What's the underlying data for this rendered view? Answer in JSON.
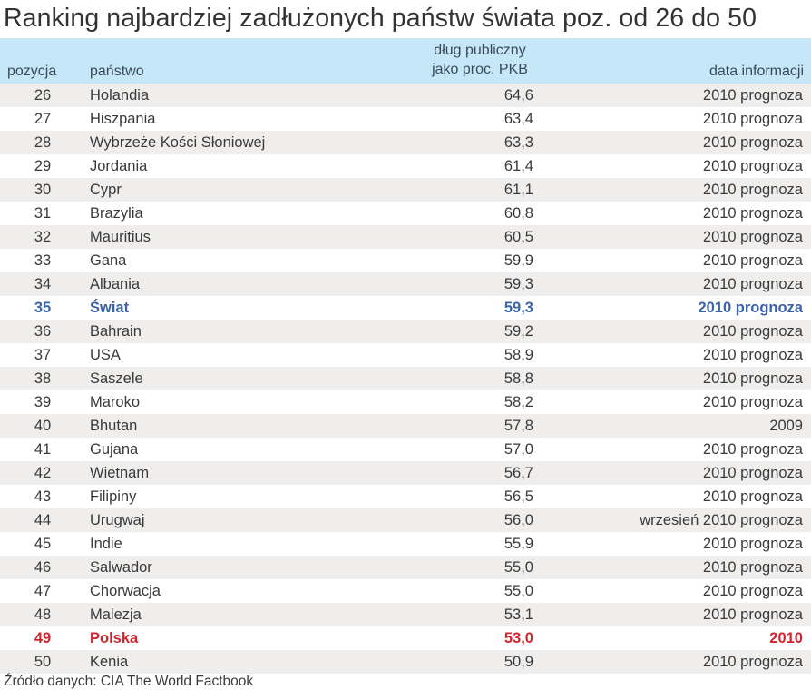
{
  "title": "Ranking najbardziej zadłużonych państw świata poz. od 26 do 50",
  "header": {
    "position": "pozycja",
    "country": "państwo",
    "debt_line1": "dług publiczny",
    "debt_line2": "jako proc. PKB",
    "date": "data informacji"
  },
  "colors": {
    "header_bg": "#c6e7f8",
    "stripe": "#efeeed",
    "world": "#3b63a8",
    "poland": "#d1262f"
  },
  "rows": [
    {
      "pos": "26",
      "country": "Holandia",
      "debt": "64,6",
      "date": "2010 prognoza"
    },
    {
      "pos": "27",
      "country": "Hiszpania",
      "debt": "63,4",
      "date": "2010 prognoza"
    },
    {
      "pos": "28",
      "country": "Wybrzeże Kości Słoniowej",
      "debt": "63,3",
      "date": "2010 prognoza"
    },
    {
      "pos": "29",
      "country": "Jordania",
      "debt": "61,4",
      "date": "2010 prognoza"
    },
    {
      "pos": "30",
      "country": "Cypr",
      "debt": "61,1",
      "date": "2010 prognoza"
    },
    {
      "pos": "31",
      "country": "Brazylia",
      "debt": "60,8",
      "date": "2010 prognoza"
    },
    {
      "pos": "32",
      "country": "Mauritius",
      "debt": "60,5",
      "date": "2010 prognoza"
    },
    {
      "pos": "33",
      "country": "Gana",
      "debt": "59,9",
      "date": "2010 prognoza"
    },
    {
      "pos": "34",
      "country": "Albania",
      "debt": "59,3",
      "date": "2010 prognoza"
    },
    {
      "pos": "35",
      "country": "Świat",
      "debt": "59,3",
      "date": "2010 prognoza",
      "highlight": "world"
    },
    {
      "pos": "36",
      "country": "Bahrain",
      "debt": "59,2",
      "date": "2010 prognoza"
    },
    {
      "pos": "37",
      "country": "USA",
      "debt": "58,9",
      "date": "2010 prognoza"
    },
    {
      "pos": "38",
      "country": "Saszele",
      "debt": "58,8",
      "date": "2010 prognoza"
    },
    {
      "pos": "39",
      "country": "Maroko",
      "debt": "58,2",
      "date": "2010 prognoza"
    },
    {
      "pos": "40",
      "country": "Bhutan",
      "debt": "57,8",
      "date": "2009"
    },
    {
      "pos": "41",
      "country": "Gujana",
      "debt": "57,0",
      "date": "2010 prognoza"
    },
    {
      "pos": "42",
      "country": "Wietnam",
      "debt": "56,7",
      "date": "2010 prognoza"
    },
    {
      "pos": "43",
      "country": "Filipiny",
      "debt": "56,5",
      "date": "2010 prognoza"
    },
    {
      "pos": "44",
      "country": "Urugwaj",
      "debt": "56,0",
      "date": "wrzesień 2010 prognoza"
    },
    {
      "pos": "45",
      "country": "Indie",
      "debt": "55,9",
      "date": "2010 prognoza"
    },
    {
      "pos": "46",
      "country": "Salwador",
      "debt": "55,0",
      "date": "2010 prognoza"
    },
    {
      "pos": "47",
      "country": "Chorwacja",
      "debt": "55,0",
      "date": "2010 prognoza"
    },
    {
      "pos": "48",
      "country": "Malezja",
      "debt": "53,1",
      "date": "2010 prognoza"
    },
    {
      "pos": "49",
      "country": "Polska",
      "debt": "53,0",
      "date": "2010",
      "highlight": "poland"
    },
    {
      "pos": "50",
      "country": "Kenia",
      "debt": "50,9",
      "date": "2010 prognoza"
    }
  ],
  "source": "Źródło danych: CIA The World Factbook"
}
